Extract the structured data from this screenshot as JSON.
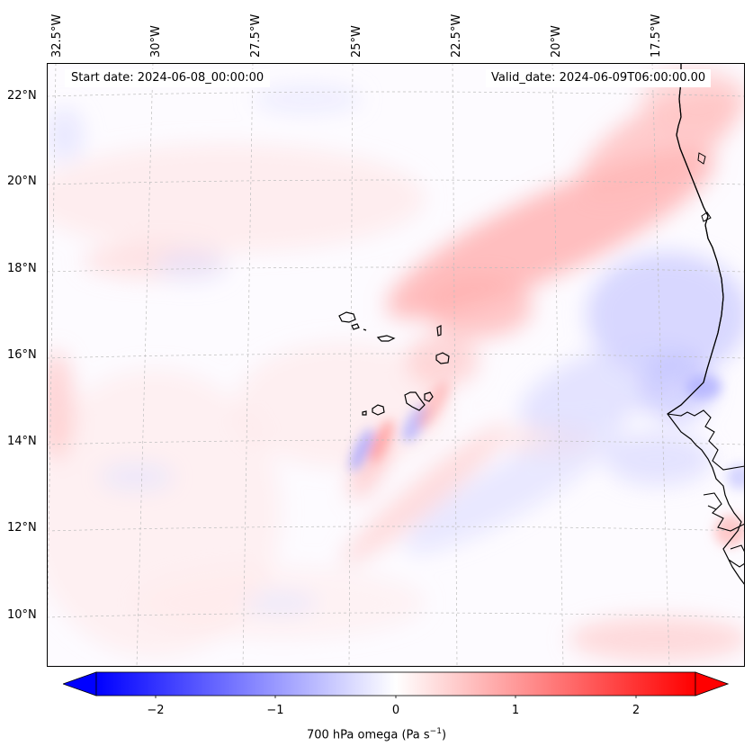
{
  "map": {
    "start_date": "Start date: 2024-06-08_00:00:00",
    "valid_date": "Valid_date: 2024-06-09T06:00:00.00",
    "lon_labels": [
      "32.5°W",
      "30°W",
      "27.5°W",
      "25°W",
      "22.5°W",
      "20°W",
      "17.5°W"
    ],
    "lat_labels": [
      "22°N",
      "20°N",
      "18°N",
      "16°N",
      "14°N",
      "12°N",
      "10°N"
    ],
    "colorbar": {
      "label_text": "700 hPa omega (Pa s",
      "label_exp": "−1",
      "label_close": ")",
      "ticks": [
        "−2",
        "−1",
        "0",
        "1",
        "2"
      ],
      "min": -2.5,
      "max": 2.5
    },
    "colors": {
      "negative": "#0000ff",
      "zero": "#ffffff",
      "positive": "#ff0000"
    }
  }
}
